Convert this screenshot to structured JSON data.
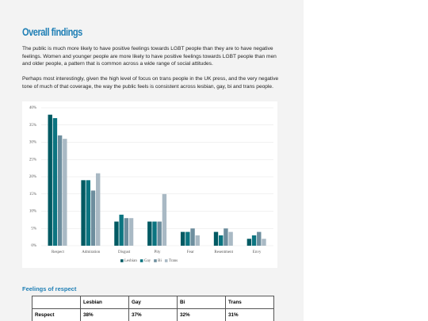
{
  "header": {
    "title": "Overall findings"
  },
  "paragraphs": [
    "The public is much more likely to have positive feelings towards LGBT people than they are to have negative feelings. Women and younger people are more likely to have positive feelings towards LGBT people than men and older people, a pattern that is common across a wide range of social attitudes.",
    "Perhaps most interestingly, given the high level of focus on trans people in the UK press, and the very negative tone of much of that coverage, the way the public feels is consistent across lesbian, gay, bi and trans people."
  ],
  "chart_data": {
    "type": "bar",
    "categories": [
      "Respect",
      "Admiration",
      "Disgust",
      "Pity",
      "Fear",
      "Resentment",
      "Envy"
    ],
    "series": [
      {
        "name": "Lesbian",
        "color": "#005a63",
        "values": [
          38,
          19,
          7,
          7,
          4,
          4,
          2
        ]
      },
      {
        "name": "Gay",
        "color": "#0b7480",
        "values": [
          37,
          19,
          9,
          7,
          4,
          3,
          3
        ]
      },
      {
        "name": "Bi",
        "color": "#6d8e9e",
        "values": [
          32,
          16,
          8,
          7,
          5,
          5,
          4
        ]
      },
      {
        "name": "Trans",
        "color": "#a9b9c4",
        "values": [
          31,
          21,
          8,
          15,
          3,
          4,
          2
        ]
      }
    ],
    "ylim": [
      0,
      40
    ],
    "yticks": [
      {
        "value": 0,
        "label": "0%"
      },
      {
        "value": 5,
        "label": "5%"
      },
      {
        "value": 10,
        "label": "10%"
      },
      {
        "value": 15,
        "label": "15%"
      },
      {
        "value": 20,
        "label": "20%"
      },
      {
        "value": 25,
        "label": "25%"
      },
      {
        "value": 30,
        "label": "30%"
      },
      {
        "value": 35,
        "label": "35%"
      },
      {
        "value": 40,
        "label": "40%"
      }
    ],
    "grid": true,
    "legend": "bottom"
  },
  "table": {
    "title": "Feelings of respect",
    "header": [
      "Lesbian",
      "Gay",
      "Bi",
      "Trans"
    ],
    "rows": [
      [
        "Respect",
        "38%",
        "37%",
        "32%",
        "31%"
      ]
    ]
  }
}
